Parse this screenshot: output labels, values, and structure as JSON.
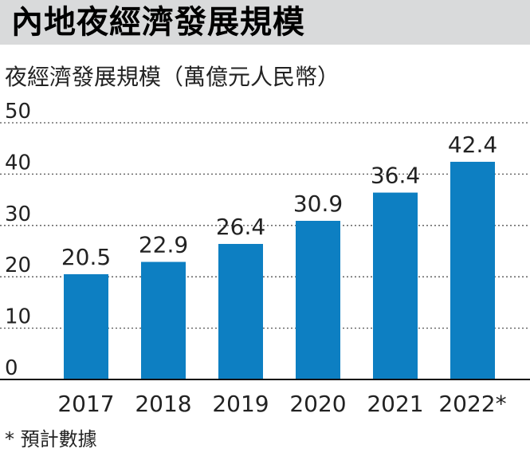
{
  "title": "內地夜經濟發展規模",
  "footnote": "* 預計數據",
  "chart_data": {
    "type": "bar",
    "ylabel": "夜經濟發展規模（萬億元人民幣）",
    "categories": [
      "2017",
      "2018",
      "2019",
      "2020",
      "2021",
      "2022*"
    ],
    "values": [
      20.5,
      22.9,
      26.4,
      30.9,
      36.4,
      42.4
    ],
    "data_labels": [
      "20.5",
      "22.9",
      "26.4",
      "30.9",
      "36.4",
      "42.4"
    ],
    "yticks": [
      "0",
      "10",
      "20",
      "30",
      "40",
      "50"
    ],
    "ylim": [
      0,
      50
    ],
    "grid": true,
    "bar_color": "#0d7fc2"
  }
}
